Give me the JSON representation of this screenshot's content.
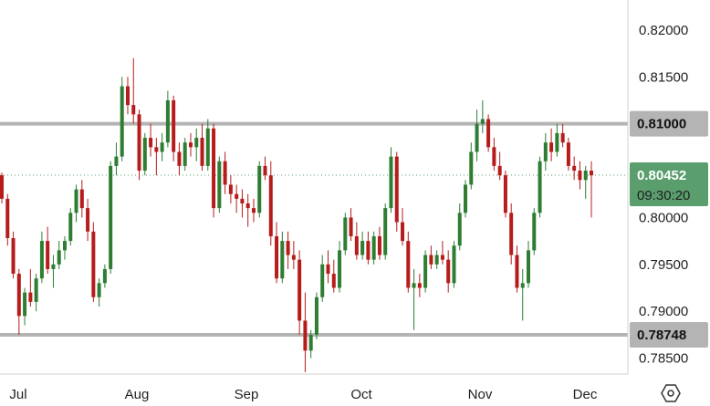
{
  "chart_data": {
    "type": "candlestick",
    "title": "",
    "xlabel": "",
    "ylabel": "",
    "ylim": [
      0.7833,
      0.8232
    ],
    "grid": false,
    "y_ticks": [
      "0.82000",
      "0.81500",
      "0.81000",
      "0.80000",
      "0.79500",
      "0.79000",
      "0.78500"
    ],
    "x_ticks": [
      "Jul",
      "Aug",
      "Sep",
      "Oct",
      "Nov",
      "Dec"
    ],
    "last_price": {
      "value": 0.80452,
      "label": "0.80452",
      "countdown": "09:30:20"
    },
    "levels": [
      {
        "value": 0.81,
        "label": "0.81000"
      },
      {
        "value": 0.78748,
        "label": "0.78748"
      }
    ],
    "colors": {
      "up": "#2e7d32",
      "down": "#b71c1c",
      "level": "#b4b4b4",
      "level_tag": "#b4b4b4",
      "last_tag": "#5a9e6e",
      "axis_text": "#1f1f1f"
    },
    "candles": [
      [
        0.8045,
        0.8048,
        0.8015,
        0.802
      ],
      [
        0.802,
        0.8025,
        0.797,
        0.7978
      ],
      [
        0.7978,
        0.7985,
        0.7935,
        0.794
      ],
      [
        0.794,
        0.7945,
        0.7875,
        0.7895
      ],
      [
        0.7895,
        0.7925,
        0.7885,
        0.792
      ],
      [
        0.792,
        0.7945,
        0.7905,
        0.791
      ],
      [
        0.791,
        0.794,
        0.79,
        0.7935
      ],
      [
        0.7935,
        0.7985,
        0.793,
        0.7975
      ],
      [
        0.7975,
        0.799,
        0.794,
        0.7945
      ],
      [
        0.7945,
        0.796,
        0.7925,
        0.795
      ],
      [
        0.795,
        0.7975,
        0.7945,
        0.7965
      ],
      [
        0.7965,
        0.798,
        0.7955,
        0.7975
      ],
      [
        0.7975,
        0.801,
        0.797,
        0.8005
      ],
      [
        0.8005,
        0.8035,
        0.7995,
        0.803
      ],
      [
        0.803,
        0.804,
        0.8,
        0.801
      ],
      [
        0.801,
        0.802,
        0.7975,
        0.7985
      ],
      [
        0.7985,
        0.7995,
        0.791,
        0.7915
      ],
      [
        0.7915,
        0.7935,
        0.7905,
        0.793
      ],
      [
        0.793,
        0.795,
        0.7925,
        0.7945
      ],
      [
        0.7945,
        0.806,
        0.794,
        0.8055
      ],
      [
        0.8055,
        0.808,
        0.8045,
        0.8065
      ],
      [
        0.8065,
        0.815,
        0.806,
        0.814
      ],
      [
        0.814,
        0.815,
        0.811,
        0.812
      ],
      [
        0.812,
        0.817,
        0.81,
        0.811
      ],
      [
        0.811,
        0.8115,
        0.804,
        0.805
      ],
      [
        0.805,
        0.809,
        0.8045,
        0.8085
      ],
      [
        0.8085,
        0.81,
        0.8065,
        0.8075
      ],
      [
        0.8075,
        0.8085,
        0.8045,
        0.807
      ],
      [
        0.807,
        0.809,
        0.806,
        0.808
      ],
      [
        0.808,
        0.8135,
        0.8075,
        0.8125
      ],
      [
        0.8125,
        0.813,
        0.806,
        0.807
      ],
      [
        0.807,
        0.808,
        0.8045,
        0.8055
      ],
      [
        0.8055,
        0.8085,
        0.805,
        0.808
      ],
      [
        0.808,
        0.809,
        0.8065,
        0.8075
      ],
      [
        0.8075,
        0.8095,
        0.806,
        0.8085
      ],
      [
        0.8085,
        0.81,
        0.805,
        0.8055
      ],
      [
        0.8055,
        0.8105,
        0.805,
        0.8095
      ],
      [
        0.8095,
        0.81,
        0.8,
        0.801
      ],
      [
        0.801,
        0.8065,
        0.8005,
        0.806
      ],
      [
        0.806,
        0.807,
        0.8025,
        0.8035
      ],
      [
        0.8035,
        0.8045,
        0.8015,
        0.8025
      ],
      [
        0.8025,
        0.8035,
        0.8005,
        0.802
      ],
      [
        0.802,
        0.803,
        0.8,
        0.8015
      ],
      [
        0.8015,
        0.8025,
        0.799,
        0.801
      ],
      [
        0.801,
        0.802,
        0.7995,
        0.8005
      ],
      [
        0.8005,
        0.806,
        0.8,
        0.8055
      ],
      [
        0.8055,
        0.8065,
        0.804,
        0.8045
      ],
      [
        0.8045,
        0.806,
        0.797,
        0.798
      ],
      [
        0.798,
        0.7995,
        0.793,
        0.7935
      ],
      [
        0.7935,
        0.7985,
        0.793,
        0.7975
      ],
      [
        0.7975,
        0.7985,
        0.7945,
        0.796
      ],
      [
        0.796,
        0.7975,
        0.7945,
        0.7955
      ],
      [
        0.7955,
        0.7965,
        0.7875,
        0.789
      ],
      [
        0.789,
        0.792,
        0.7835,
        0.7858
      ],
      [
        0.7858,
        0.788,
        0.785,
        0.7875
      ],
      [
        0.7875,
        0.792,
        0.787,
        0.7915
      ],
      [
        0.7915,
        0.796,
        0.791,
        0.795
      ],
      [
        0.795,
        0.7965,
        0.793,
        0.794
      ],
      [
        0.794,
        0.7955,
        0.792,
        0.7925
      ],
      [
        0.7925,
        0.7975,
        0.792,
        0.7965
      ],
      [
        0.7965,
        0.8005,
        0.796,
        0.8
      ],
      [
        0.8,
        0.801,
        0.7975,
        0.798
      ],
      [
        0.798,
        0.7995,
        0.7955,
        0.796
      ],
      [
        0.796,
        0.7985,
        0.7955,
        0.7975
      ],
      [
        0.7975,
        0.7985,
        0.795,
        0.7955
      ],
      [
        0.7955,
        0.7985,
        0.795,
        0.798
      ],
      [
        0.798,
        0.799,
        0.7955,
        0.796
      ],
      [
        0.796,
        0.8015,
        0.7955,
        0.801
      ],
      [
        0.801,
        0.8075,
        0.8005,
        0.8065
      ],
      [
        0.8065,
        0.807,
        0.7985,
        0.7995
      ],
      [
        0.7995,
        0.801,
        0.797,
        0.7975
      ],
      [
        0.7975,
        0.7985,
        0.792,
        0.7925
      ],
      [
        0.7925,
        0.7945,
        0.788,
        0.793
      ],
      [
        0.793,
        0.794,
        0.7915,
        0.7925
      ],
      [
        0.7925,
        0.7965,
        0.792,
        0.796
      ],
      [
        0.796,
        0.797,
        0.7945,
        0.795
      ],
      [
        0.795,
        0.7965,
        0.7945,
        0.796
      ],
      [
        0.796,
        0.7975,
        0.795,
        0.7955
      ],
      [
        0.7955,
        0.7965,
        0.792,
        0.793
      ],
      [
        0.793,
        0.7975,
        0.7925,
        0.797
      ],
      [
        0.797,
        0.8015,
        0.7965,
        0.8005
      ],
      [
        0.8005,
        0.804,
        0.8,
        0.8035
      ],
      [
        0.8035,
        0.808,
        0.803,
        0.807
      ],
      [
        0.807,
        0.8115,
        0.806,
        0.81
      ],
      [
        0.81,
        0.8125,
        0.809,
        0.8105
      ],
      [
        0.8105,
        0.811,
        0.807,
        0.8075
      ],
      [
        0.8075,
        0.8085,
        0.805,
        0.8055
      ],
      [
        0.8055,
        0.807,
        0.804,
        0.8045
      ],
      [
        0.8045,
        0.805,
        0.8,
        0.8005
      ],
      [
        0.8005,
        0.8015,
        0.795,
        0.796
      ],
      [
        0.796,
        0.797,
        0.792,
        0.7925
      ],
      [
        0.7925,
        0.7945,
        0.789,
        0.793
      ],
      [
        0.793,
        0.7975,
        0.7925,
        0.7965
      ],
      [
        0.7965,
        0.801,
        0.796,
        0.8005
      ],
      [
        0.8005,
        0.8065,
        0.8,
        0.806
      ],
      [
        0.806,
        0.809,
        0.805,
        0.808
      ],
      [
        0.808,
        0.8095,
        0.806,
        0.807
      ],
      [
        0.807,
        0.81,
        0.8065,
        0.809
      ],
      [
        0.809,
        0.81,
        0.8075,
        0.808
      ],
      [
        0.808,
        0.8085,
        0.805,
        0.8055
      ],
      [
        0.8055,
        0.8065,
        0.804,
        0.805
      ],
      [
        0.805,
        0.806,
        0.803,
        0.804
      ],
      [
        0.804,
        0.8055,
        0.802,
        0.805
      ],
      [
        0.805,
        0.806,
        0.8,
        0.8045
      ]
    ]
  }
}
